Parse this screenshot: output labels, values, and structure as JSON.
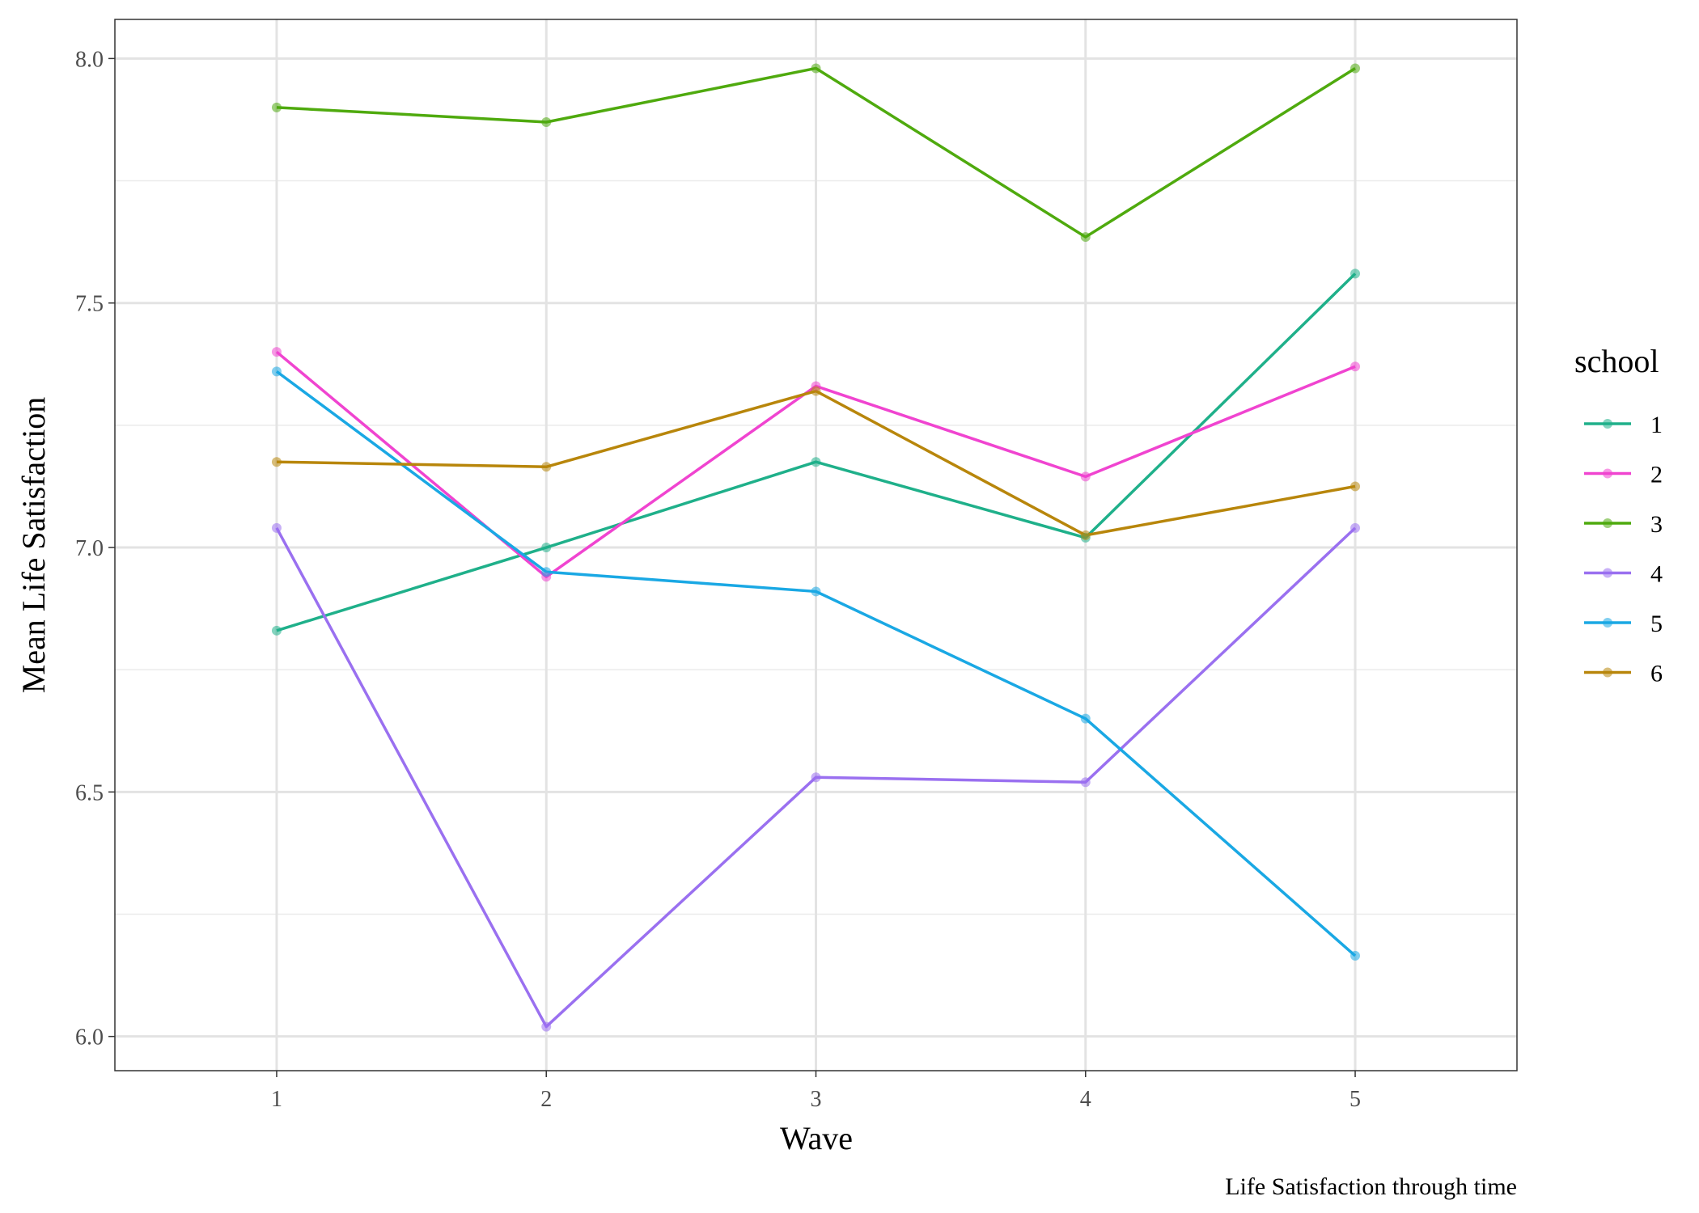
{
  "chart_data": {
    "type": "line",
    "xlabel": "Wave",
    "ylabel": "Mean Life Satisfaction",
    "caption": "Life Satisfaction through time",
    "legend_title": "school",
    "legend_position": "right",
    "grid": true,
    "x": [
      1,
      2,
      3,
      4,
      5
    ],
    "xlim": [
      0.4,
      5.6
    ],
    "ylim": [
      5.93,
      8.08
    ],
    "x_ticks": [
      "1",
      "2",
      "3",
      "4",
      "5"
    ],
    "y_ticks": [
      "6.0",
      "6.5",
      "7.0",
      "7.5",
      "8.0"
    ],
    "series": [
      {
        "name": "1",
        "color": "#1FB08A",
        "values": [
          6.83,
          7.0,
          7.175,
          7.02,
          7.56
        ]
      },
      {
        "name": "2",
        "color": "#F044D0",
        "values": [
          7.4,
          6.94,
          7.33,
          7.145,
          7.37
        ]
      },
      {
        "name": "3",
        "color": "#4FAA0E",
        "values": [
          7.9,
          7.87,
          7.98,
          7.635,
          7.98
        ]
      },
      {
        "name": "4",
        "color": "#9A70F0",
        "values": [
          7.04,
          6.02,
          6.53,
          6.52,
          7.04
        ]
      },
      {
        "name": "5",
        "color": "#1AA8E4",
        "values": [
          7.36,
          6.95,
          6.91,
          6.65,
          6.165
        ]
      },
      {
        "name": "6",
        "color": "#B8860B",
        "values": [
          7.175,
          7.165,
          7.32,
          7.025,
          7.125
        ]
      }
    ]
  }
}
